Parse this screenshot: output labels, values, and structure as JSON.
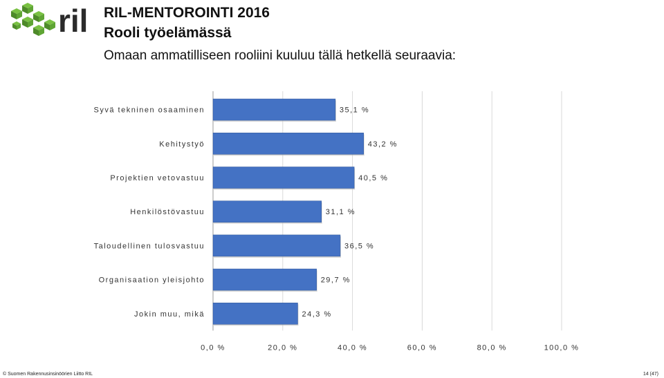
{
  "logo": {
    "text": "ril"
  },
  "header": {
    "title_line1": "RIL-MENTOROINTI 2016",
    "title_line2": "Rooli työelämässä",
    "subtitle": "Omaan ammatilliseen rooliini kuuluu tällä hetkellä seuraavia:"
  },
  "colors": {
    "bar": "#4472C4",
    "bar_edge": "#2f5597",
    "grid": "#d9d9d9",
    "logo_green": "#7ac143",
    "logo_dark": "#2b2b2b"
  },
  "chart_data": {
    "type": "bar",
    "orientation": "horizontal",
    "categories": [
      "Syvä tekninen osaaminen",
      "Kehitystyö",
      "Projektien vetovastuu",
      "Henkilöstövastuu",
      "Taloudellinen tulosvastuu",
      "Organisaation yleisjohto",
      "Jokin muu, mikä"
    ],
    "values": [
      35.1,
      43.2,
      40.5,
      31.1,
      36.5,
      29.7,
      24.3
    ],
    "value_labels": [
      "35,1 %",
      "43,2 %",
      "40,5 %",
      "31,1 %",
      "36,5 %",
      "29,7 %",
      "24,3 %"
    ],
    "xlim": [
      0,
      100
    ],
    "x_ticks": [
      0,
      20,
      40,
      60,
      80,
      100
    ],
    "x_tick_labels": [
      "0,0 %",
      "20,0 %",
      "40,0 %",
      "60,0 %",
      "80,0 %",
      "100,0 %"
    ],
    "grid": true
  },
  "footer": {
    "copyright": "© Suomen Rakennusinsinöörien Liitto RIL",
    "page": "14 (47)"
  }
}
